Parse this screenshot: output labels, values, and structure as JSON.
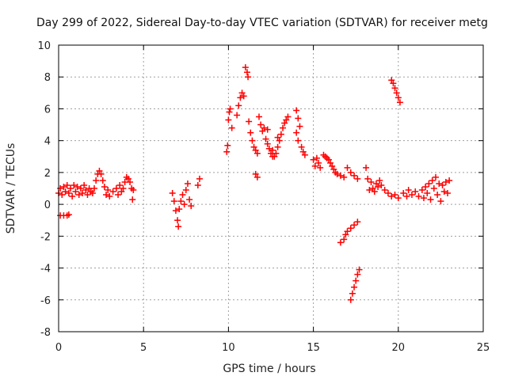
{
  "chart_data": {
    "type": "scatter",
    "title": "Day 299 of 2022, Sidereal Day-to-day VTEC variation (SDTVAR) for receiver metg",
    "xlabel": "GPS time / hours",
    "ylabel": "SDTVAR / TECUs",
    "xlim": [
      0,
      25
    ],
    "ylim": [
      -8,
      10
    ],
    "xticks": [
      0,
      5,
      10,
      15,
      20,
      25
    ],
    "yticks": [
      -8,
      -6,
      -4,
      -2,
      0,
      2,
      4,
      6,
      8,
      10
    ],
    "grid": true,
    "marker": "plus",
    "color": "#ff0000",
    "series": [
      {
        "name": "SDTVAR",
        "points": [
          [
            0.0,
            0.7
          ],
          [
            0.1,
            1.0
          ],
          [
            0.2,
            0.6
          ],
          [
            0.3,
            1.1
          ],
          [
            0.4,
            0.8
          ],
          [
            0.5,
            1.2
          ],
          [
            0.6,
            0.7
          ],
          [
            0.7,
            1.0
          ],
          [
            0.8,
            0.5
          ],
          [
            0.9,
            1.2
          ],
          [
            1.0,
            0.8
          ],
          [
            1.1,
            1.1
          ],
          [
            1.2,
            0.6
          ],
          [
            1.3,
            1.0
          ],
          [
            1.4,
            0.7
          ],
          [
            1.5,
            1.2
          ],
          [
            1.6,
            0.9
          ],
          [
            1.7,
            0.6
          ],
          [
            1.8,
            1.0
          ],
          [
            1.9,
            0.8
          ],
          [
            0.1,
            -0.7
          ],
          [
            0.3,
            -0.7
          ],
          [
            0.5,
            -0.7
          ],
          [
            0.6,
            -0.65
          ],
          [
            2.0,
            0.7
          ],
          [
            2.1,
            1.0
          ],
          [
            2.2,
            1.5
          ],
          [
            2.3,
            1.9
          ],
          [
            2.4,
            2.1
          ],
          [
            2.5,
            1.9
          ],
          [
            2.6,
            1.5
          ],
          [
            2.7,
            1.1
          ],
          [
            2.8,
            0.6
          ],
          [
            2.9,
            0.9
          ],
          [
            3.0,
            0.5
          ],
          [
            3.2,
            0.8
          ],
          [
            3.4,
            1.0
          ],
          [
            3.5,
            0.6
          ],
          [
            3.6,
            1.2
          ],
          [
            3.7,
            0.8
          ],
          [
            3.8,
            1.0
          ],
          [
            3.9,
            1.4
          ],
          [
            4.0,
            1.7
          ],
          [
            4.1,
            1.6
          ],
          [
            4.2,
            1.4
          ],
          [
            4.3,
            1.0
          ],
          [
            4.35,
            0.3
          ],
          [
            4.4,
            0.9
          ],
          [
            6.7,
            0.7
          ],
          [
            6.8,
            0.2
          ],
          [
            6.9,
            -0.4
          ],
          [
            7.0,
            -1.0
          ],
          [
            7.05,
            -1.4
          ],
          [
            7.1,
            -0.3
          ],
          [
            7.2,
            0.2
          ],
          [
            7.3,
            0.6
          ],
          [
            7.4,
            0.0
          ],
          [
            7.5,
            0.9
          ],
          [
            7.6,
            1.3
          ],
          [
            7.7,
            0.3
          ],
          [
            7.8,
            -0.1
          ],
          [
            8.2,
            1.2
          ],
          [
            8.3,
            1.6
          ],
          [
            9.9,
            3.3
          ],
          [
            9.95,
            3.7
          ],
          [
            10.0,
            5.3
          ],
          [
            10.05,
            5.8
          ],
          [
            10.1,
            6.0
          ],
          [
            10.2,
            4.8
          ],
          [
            10.5,
            5.6
          ],
          [
            10.6,
            6.2
          ],
          [
            10.7,
            6.7
          ],
          [
            10.8,
            7.0
          ],
          [
            10.9,
            6.8
          ],
          [
            11.0,
            8.6
          ],
          [
            11.1,
            8.3
          ],
          [
            11.15,
            8.0
          ],
          [
            11.2,
            5.2
          ],
          [
            11.3,
            4.5
          ],
          [
            11.4,
            4.0
          ],
          [
            11.5,
            3.6
          ],
          [
            11.6,
            3.4
          ],
          [
            11.7,
            3.2
          ],
          [
            11.6,
            1.9
          ],
          [
            11.7,
            1.7
          ],
          [
            11.8,
            5.5
          ],
          [
            11.9,
            5.0
          ],
          [
            12.0,
            4.6
          ],
          [
            12.1,
            4.8
          ],
          [
            12.2,
            4.1
          ],
          [
            12.3,
            3.8
          ],
          [
            12.4,
            3.5
          ],
          [
            12.5,
            3.2
          ],
          [
            12.6,
            3.0
          ],
          [
            12.7,
            3.0
          ],
          [
            12.8,
            3.2
          ],
          [
            12.9,
            3.6
          ],
          [
            13.0,
            4.0
          ],
          [
            13.1,
            4.4
          ],
          [
            13.2,
            4.8
          ],
          [
            13.3,
            5.1
          ],
          [
            13.4,
            5.3
          ],
          [
            13.5,
            5.5
          ],
          [
            12.3,
            4.7
          ],
          [
            12.6,
            3.4
          ],
          [
            12.9,
            4.2
          ],
          [
            14.0,
            5.9
          ],
          [
            14.1,
            5.4
          ],
          [
            14.2,
            4.9
          ],
          [
            14.0,
            4.5
          ],
          [
            14.1,
            4.0
          ],
          [
            14.3,
            3.6
          ],
          [
            14.4,
            3.3
          ],
          [
            14.5,
            3.1
          ],
          [
            15.0,
            2.8
          ],
          [
            15.1,
            2.4
          ],
          [
            15.2,
            2.9
          ],
          [
            15.3,
            2.6
          ],
          [
            15.4,
            2.3
          ],
          [
            15.6,
            3.1
          ],
          [
            15.7,
            3.0
          ],
          [
            15.8,
            2.9
          ],
          [
            15.9,
            2.8
          ],
          [
            16.0,
            2.6
          ],
          [
            16.1,
            2.4
          ],
          [
            16.2,
            2.2
          ],
          [
            16.3,
            2.0
          ],
          [
            16.4,
            1.9
          ],
          [
            16.6,
            1.8
          ],
          [
            16.8,
            1.7
          ],
          [
            17.0,
            2.3
          ],
          [
            17.2,
            2.0
          ],
          [
            17.4,
            1.8
          ],
          [
            17.6,
            1.6
          ],
          [
            16.6,
            -2.4
          ],
          [
            16.8,
            -2.2
          ],
          [
            16.9,
            -1.9
          ],
          [
            17.0,
            -1.7
          ],
          [
            17.2,
            -1.5
          ],
          [
            17.4,
            -1.3
          ],
          [
            17.6,
            -1.1
          ],
          [
            17.2,
            -6.0
          ],
          [
            17.3,
            -5.6
          ],
          [
            17.4,
            -5.2
          ],
          [
            17.5,
            -4.8
          ],
          [
            17.6,
            -4.4
          ],
          [
            17.7,
            -4.1
          ],
          [
            18.1,
            2.3
          ],
          [
            18.2,
            1.6
          ],
          [
            18.3,
            0.9
          ],
          [
            18.4,
            1.4
          ],
          [
            18.5,
            1.0
          ],
          [
            18.6,
            0.8
          ],
          [
            18.7,
            1.3
          ],
          [
            18.8,
            1.1
          ],
          [
            18.9,
            1.5
          ],
          [
            19.0,
            1.2
          ],
          [
            19.2,
            0.9
          ],
          [
            19.4,
            0.7
          ],
          [
            19.6,
            0.5
          ],
          [
            19.8,
            0.6
          ],
          [
            20.0,
            0.4
          ],
          [
            19.6,
            7.8
          ],
          [
            19.7,
            7.6
          ],
          [
            19.8,
            7.3
          ],
          [
            19.9,
            7.0
          ],
          [
            20.0,
            6.7
          ],
          [
            20.1,
            6.4
          ],
          [
            20.3,
            0.7
          ],
          [
            20.5,
            0.5
          ],
          [
            20.6,
            0.9
          ],
          [
            20.8,
            0.6
          ],
          [
            21.0,
            0.8
          ],
          [
            21.2,
            0.5
          ],
          [
            21.4,
            0.9
          ],
          [
            21.5,
            0.4
          ],
          [
            21.6,
            1.1
          ],
          [
            21.7,
            0.7
          ],
          [
            21.8,
            1.3
          ],
          [
            21.9,
            0.3
          ],
          [
            22.0,
            1.5
          ],
          [
            22.1,
            1.0
          ],
          [
            22.2,
            1.7
          ],
          [
            22.3,
            0.6
          ],
          [
            22.4,
            1.3
          ],
          [
            22.5,
            0.2
          ],
          [
            22.6,
            1.2
          ],
          [
            22.7,
            0.8
          ],
          [
            22.8,
            1.4
          ],
          [
            22.9,
            0.7
          ],
          [
            23.0,
            1.5
          ]
        ]
      }
    ]
  }
}
